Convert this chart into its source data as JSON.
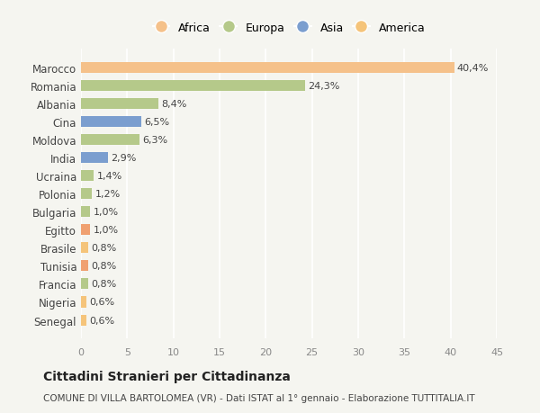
{
  "categories": [
    "Senegal",
    "Nigeria",
    "Francia",
    "Tunisia",
    "Brasile",
    "Egitto",
    "Bulgaria",
    "Polonia",
    "Ucraina",
    "India",
    "Moldova",
    "Cina",
    "Albania",
    "Romania",
    "Marocco"
  ],
  "values": [
    0.6,
    0.6,
    0.8,
    0.8,
    0.8,
    1.0,
    1.0,
    1.2,
    1.4,
    2.9,
    6.3,
    6.5,
    8.4,
    24.3,
    40.4
  ],
  "colors": [
    "#f5c47a",
    "#f5c47a",
    "#b5c98a",
    "#f0a070",
    "#f5c47a",
    "#f0a070",
    "#b5c98a",
    "#b5c98a",
    "#b5c98a",
    "#7b9ecf",
    "#b5c98a",
    "#7b9ecf",
    "#b5c98a",
    "#b5c98a",
    "#f5c18a"
  ],
  "labels": [
    "0,6%",
    "0,6%",
    "0,8%",
    "0,8%",
    "0,8%",
    "1,0%",
    "1,0%",
    "1,2%",
    "1,4%",
    "2,9%",
    "6,3%",
    "6,5%",
    "8,4%",
    "24,3%",
    "40,4%"
  ],
  "legend_labels": [
    "Africa",
    "Europa",
    "Asia",
    "America"
  ],
  "legend_colors": [
    "#f5c18a",
    "#b5c98a",
    "#7b9ecf",
    "#f5c47a"
  ],
  "xlim": [
    0,
    45
  ],
  "xticks": [
    0,
    5,
    10,
    15,
    20,
    25,
    30,
    35,
    40,
    45
  ],
  "title": "Cittadini Stranieri per Cittadinanza",
  "subtitle": "COMUNE DI VILLA BARTOLOMEA (VR) - Dati ISTAT al 1° gennaio - Elaborazione TUTTITALIA.IT",
  "background_color": "#f5f5f0",
  "grid_color": "#ffffff",
  "bar_height": 0.6
}
